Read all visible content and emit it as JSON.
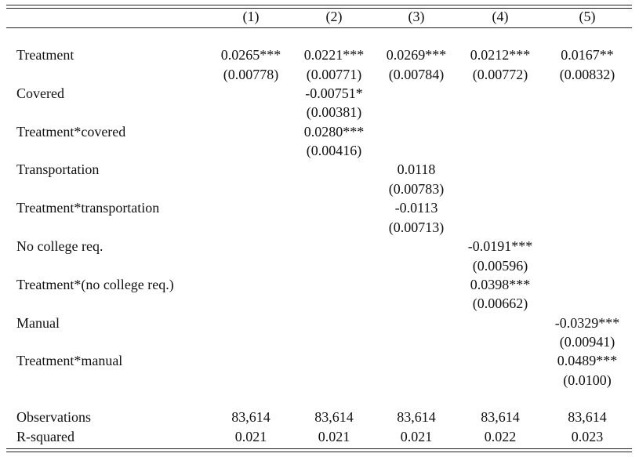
{
  "table": {
    "columns": [
      "(1)",
      "(2)",
      "(3)",
      "(4)",
      "(5)"
    ],
    "rows": [
      {
        "label": "Treatment",
        "cells": [
          {
            "coef": "0.0265***",
            "se": "(0.00778)"
          },
          {
            "coef": "0.0221***",
            "se": "(0.00771)"
          },
          {
            "coef": "0.0269***",
            "se": "(0.00784)"
          },
          {
            "coef": "0.0212***",
            "se": "(0.00772)"
          },
          {
            "coef": "0.0167**",
            "se": "(0.00832)"
          }
        ]
      },
      {
        "label": "Covered",
        "cells": [
          null,
          {
            "coef": "-0.00751*",
            "se": "(0.00381)"
          },
          null,
          null,
          null
        ]
      },
      {
        "label": "Treatment*covered",
        "cells": [
          null,
          {
            "coef": "0.0280***",
            "se": "(0.00416)"
          },
          null,
          null,
          null
        ]
      },
      {
        "label": "Transportation",
        "cells": [
          null,
          null,
          {
            "coef": "0.0118",
            "se": "(0.00783)"
          },
          null,
          null
        ]
      },
      {
        "label": "Treatment*transportation",
        "cells": [
          null,
          null,
          {
            "coef": "-0.0113",
            "se": "(0.00713)"
          },
          null,
          null
        ]
      },
      {
        "label": "No college req.",
        "cells": [
          null,
          null,
          null,
          {
            "coef": "-0.0191***",
            "se": "(0.00596)"
          },
          null
        ]
      },
      {
        "label": "Treatment*(no college req.)",
        "cells": [
          null,
          null,
          null,
          {
            "coef": "0.0398***",
            "se": "(0.00662)"
          },
          null
        ]
      },
      {
        "label": "Manual",
        "cells": [
          null,
          null,
          null,
          null,
          {
            "coef": "-0.0329***",
            "se": "(0.00941)"
          }
        ]
      },
      {
        "label": "Treatment*manual",
        "cells": [
          null,
          null,
          null,
          null,
          {
            "coef": "0.0489***",
            "se": "(0.0100)"
          }
        ]
      }
    ],
    "stats": [
      {
        "label": "Observations",
        "cells": [
          "83,614",
          "83,614",
          "83,614",
          "83,614",
          "83,614"
        ]
      },
      {
        "label": "R-squared",
        "cells": [
          "0.021",
          "0.021",
          "0.021",
          "0.022",
          "0.023"
        ]
      }
    ]
  }
}
